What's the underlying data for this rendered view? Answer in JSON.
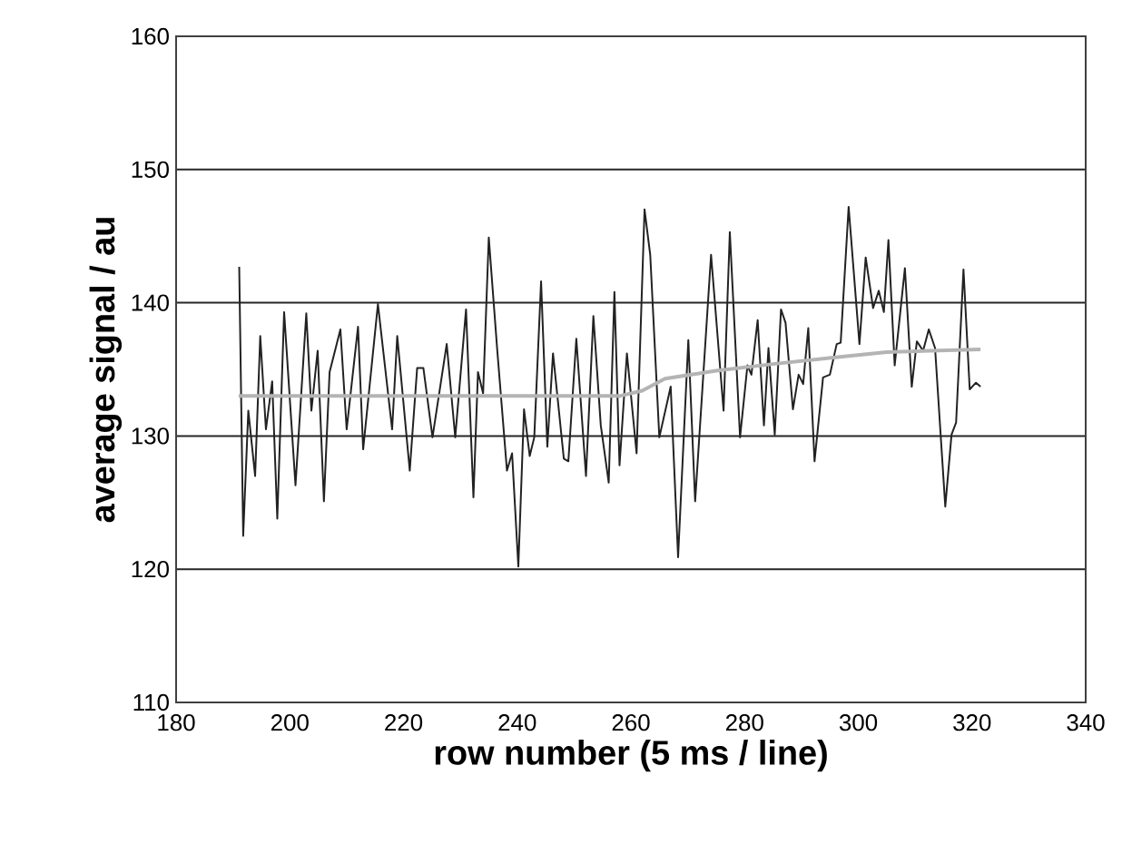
{
  "chart_data": {
    "type": "line",
    "xlabel": "row number (5 ms / line)",
    "ylabel": "average signal / au",
    "xlim": [
      180,
      340
    ],
    "ylim": [
      110,
      160
    ],
    "xticks": [
      180,
      200,
      220,
      240,
      260,
      280,
      300,
      320,
      340
    ],
    "yticks": [
      110,
      120,
      130,
      140,
      150,
      160
    ],
    "grid": "y",
    "marker": "none",
    "line_style": "solid",
    "series": [
      {
        "color": "#222222",
        "x": [
          191.1,
          191.8,
          192.7,
          193.9,
          194.8,
          195.8,
          196.9,
          197.8,
          199,
          201,
          202.9,
          203.8,
          204.9,
          206,
          207,
          208.9,
          210,
          212,
          212.9,
          215.5,
          218,
          218.9,
          221.1,
          222.4,
          223.5,
          225.1,
          227.6,
          229.1,
          231,
          232.3,
          233.1,
          234,
          235,
          236.5,
          238.2,
          239.1,
          240.2,
          241.2,
          242.2,
          243,
          244.2,
          245.3,
          246.3,
          248.2,
          249,
          250.4,
          252.1,
          253.4,
          254.7,
          256.1,
          257.1,
          258,
          259.3,
          261,
          262.4,
          263.4,
          265,
          267,
          268.3,
          270.1,
          271.3,
          274.1,
          276.3,
          277.4,
          279.2,
          280.5,
          281.2,
          282.3,
          283.4,
          284.2,
          285.3,
          286.4,
          287.2,
          288.5,
          289.5,
          290.3,
          291.2,
          292.3,
          293.8,
          295,
          296.2,
          296.9,
          298.3,
          300.2,
          301.3,
          302.6,
          303.6,
          304.5,
          305.3,
          306.4,
          308.2,
          309.4,
          310.3,
          311.4,
          312.4,
          313.5,
          315.3,
          316.4,
          317.2,
          318.5,
          319.6,
          320.7,
          321.5
        ],
        "values": [
          142.7,
          122.5,
          131.9,
          127,
          137.5,
          130.5,
          134.1,
          123.8,
          139.3,
          126.3,
          139.2,
          131.9,
          136.4,
          125.1,
          134.8,
          138,
          130.5,
          138.2,
          129,
          139.9,
          130.5,
          137.5,
          127.4,
          135.1,
          135.1,
          129.9,
          136.9,
          129.9,
          139.5,
          125.4,
          134.8,
          133.2,
          144.9,
          136.4,
          127.4,
          128.7,
          120.2,
          132,
          128.5,
          129.9,
          141.6,
          129.2,
          136.2,
          128.3,
          128.1,
          137.3,
          127,
          139,
          130.8,
          126.5,
          140.8,
          127.8,
          136.2,
          128.7,
          147,
          143.6,
          129.9,
          133.7,
          120.9,
          137.2,
          125.1,
          143.6,
          131.9,
          145.3,
          129.9,
          135.3,
          134.6,
          138.7,
          130.8,
          136.6,
          130.1,
          139.5,
          138.5,
          132,
          134.6,
          133.9,
          138.1,
          128.1,
          134.4,
          134.6,
          136.9,
          137,
          147.2,
          136.9,
          143.4,
          139.6,
          140.9,
          139.3,
          144.7,
          135.3,
          142.6,
          133.7,
          137.1,
          136.4,
          138,
          136.6,
          124.7,
          130.1,
          131,
          142.5,
          133.5,
          134,
          133.7
        ]
      },
      {
        "color": "#b4b4b4",
        "x": [
          191,
          258,
          262,
          266,
          275,
          285,
          296,
          305,
          321.5
        ],
        "values": [
          133,
          133,
          133.4,
          134.3,
          134.9,
          135.4,
          135.9,
          136.3,
          136.5
        ]
      }
    ]
  }
}
